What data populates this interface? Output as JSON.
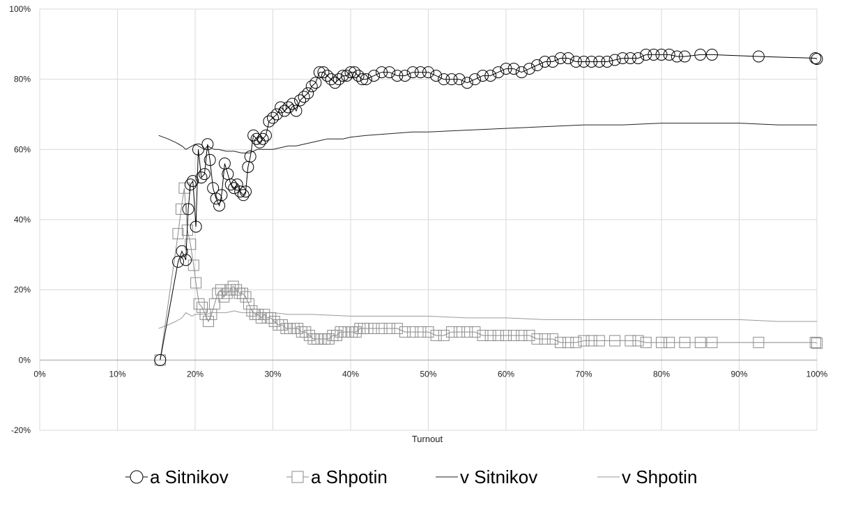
{
  "chart_data": {
    "type": "scatter",
    "title": "",
    "xlabel": "Turnout",
    "ylabel": "",
    "xlim": [
      0,
      100
    ],
    "ylim": [
      -20,
      100
    ],
    "x_ticks": [
      "0%",
      "10%",
      "20%",
      "30%",
      "40%",
      "50%",
      "60%",
      "70%",
      "80%",
      "90%",
      "100%"
    ],
    "y_ticks": [
      "-20%",
      "0%",
      "20%",
      "40%",
      "60%",
      "80%",
      "100%"
    ],
    "grid": true,
    "legend_position": "bottom",
    "series": [
      {
        "name": "a Sitnikov",
        "marker": "circle",
        "color": "#000000",
        "points": [
          [
            15.5,
            0
          ],
          [
            17.8,
            28
          ],
          [
            18.3,
            31
          ],
          [
            18.8,
            28.5
          ],
          [
            19.1,
            43
          ],
          [
            19.4,
            50
          ],
          [
            19.7,
            51
          ],
          [
            20.1,
            38
          ],
          [
            20.4,
            60
          ],
          [
            20.8,
            52
          ],
          [
            21.2,
            53
          ],
          [
            21.6,
            61.5
          ],
          [
            21.9,
            57
          ],
          [
            22.3,
            49
          ],
          [
            22.7,
            46
          ],
          [
            23.1,
            44
          ],
          [
            23.4,
            47
          ],
          [
            23.8,
            56
          ],
          [
            24.2,
            53
          ],
          [
            24.6,
            50
          ],
          [
            25.0,
            49
          ],
          [
            25.4,
            50
          ],
          [
            25.8,
            48
          ],
          [
            26.2,
            47
          ],
          [
            26.5,
            48
          ],
          [
            26.8,
            55
          ],
          [
            27.1,
            58
          ],
          [
            27.5,
            64
          ],
          [
            27.9,
            63
          ],
          [
            28.3,
            62
          ],
          [
            28.7,
            63
          ],
          [
            29.1,
            64
          ],
          [
            29.5,
            68
          ],
          [
            30.0,
            69
          ],
          [
            30.5,
            70
          ],
          [
            31.0,
            72
          ],
          [
            31.5,
            71
          ],
          [
            32.0,
            72
          ],
          [
            32.5,
            73
          ],
          [
            33.0,
            71
          ],
          [
            33.5,
            74
          ],
          [
            34.0,
            75
          ],
          [
            34.5,
            76
          ],
          [
            35.0,
            78
          ],
          [
            35.5,
            79
          ],
          [
            36.0,
            82
          ],
          [
            36.5,
            82
          ],
          [
            37.0,
            81
          ],
          [
            37.5,
            80
          ],
          [
            38.0,
            79
          ],
          [
            38.5,
            80
          ],
          [
            39.0,
            81
          ],
          [
            39.5,
            81
          ],
          [
            40.0,
            82
          ],
          [
            40.5,
            82
          ],
          [
            41.0,
            81
          ],
          [
            41.5,
            80
          ],
          [
            42.0,
            80
          ],
          [
            43,
            81
          ],
          [
            44,
            82
          ],
          [
            45,
            82
          ],
          [
            46,
            81
          ],
          [
            47,
            81
          ],
          [
            48,
            82
          ],
          [
            49,
            82
          ],
          [
            50,
            82
          ],
          [
            51,
            81
          ],
          [
            52,
            80
          ],
          [
            53,
            80
          ],
          [
            54,
            80
          ],
          [
            55,
            79
          ],
          [
            56,
            80
          ],
          [
            57,
            81
          ],
          [
            58,
            81
          ],
          [
            59,
            82
          ],
          [
            60,
            83
          ],
          [
            61,
            83
          ],
          [
            62,
            82
          ],
          [
            63,
            83
          ],
          [
            64,
            84
          ],
          [
            65,
            85
          ],
          [
            66,
            85
          ],
          [
            67,
            86
          ],
          [
            68,
            86
          ],
          [
            69,
            85
          ],
          [
            70,
            85
          ],
          [
            71,
            85
          ],
          [
            72,
            85
          ],
          [
            73,
            85
          ],
          [
            74,
            85.5
          ],
          [
            75,
            86
          ],
          [
            76,
            86
          ],
          [
            77,
            86
          ],
          [
            78,
            87
          ],
          [
            79,
            87
          ],
          [
            80,
            87
          ],
          [
            81,
            87
          ],
          [
            82,
            86.5
          ],
          [
            83,
            86.5
          ],
          [
            85,
            87
          ],
          [
            86.5,
            87
          ],
          [
            92.5,
            86.5
          ],
          [
            99.8,
            86
          ],
          [
            100,
            85.8
          ]
        ]
      },
      {
        "name": "a Shpotin",
        "marker": "square",
        "color": "#8a8a8a",
        "points": [
          [
            15.5,
            0
          ],
          [
            17.8,
            36
          ],
          [
            18.2,
            43
          ],
          [
            18.6,
            49
          ],
          [
            19.0,
            37
          ],
          [
            19.4,
            33
          ],
          [
            19.8,
            27
          ],
          [
            20.1,
            22
          ],
          [
            20.5,
            16
          ],
          [
            20.9,
            15
          ],
          [
            21.3,
            13
          ],
          [
            21.7,
            11
          ],
          [
            22.1,
            13
          ],
          [
            22.5,
            16
          ],
          [
            22.9,
            19
          ],
          [
            23.3,
            20
          ],
          [
            23.7,
            18
          ],
          [
            24.1,
            19
          ],
          [
            24.5,
            20
          ],
          [
            24.9,
            21
          ],
          [
            25.3,
            20
          ],
          [
            25.7,
            19
          ],
          [
            26.1,
            19
          ],
          [
            26.5,
            18
          ],
          [
            26.9,
            16
          ],
          [
            27.3,
            14
          ],
          [
            27.7,
            13
          ],
          [
            28.1,
            13
          ],
          [
            28.5,
            12
          ],
          [
            28.9,
            13
          ],
          [
            29.3,
            12
          ],
          [
            29.7,
            12
          ],
          [
            30.2,
            11
          ],
          [
            30.7,
            10
          ],
          [
            31.2,
            10
          ],
          [
            31.7,
            9
          ],
          [
            32.2,
            9
          ],
          [
            32.7,
            9
          ],
          [
            33.2,
            9
          ],
          [
            33.7,
            8
          ],
          [
            34.2,
            8
          ],
          [
            34.7,
            7
          ],
          [
            35.2,
            6
          ],
          [
            35.7,
            6
          ],
          [
            36.2,
            6
          ],
          [
            36.7,
            6
          ],
          [
            37.2,
            6
          ],
          [
            37.7,
            7
          ],
          [
            38.2,
            7
          ],
          [
            38.7,
            8
          ],
          [
            39.2,
            8
          ],
          [
            39.7,
            8
          ],
          [
            40.2,
            8
          ],
          [
            40.7,
            8
          ],
          [
            41.2,
            9
          ],
          [
            41.7,
            9
          ],
          [
            42.2,
            9
          ],
          [
            43,
            9
          ],
          [
            44,
            9
          ],
          [
            45,
            9
          ],
          [
            46,
            9
          ],
          [
            47,
            8
          ],
          [
            48,
            8
          ],
          [
            49,
            8
          ],
          [
            50,
            8
          ],
          [
            51,
            7
          ],
          [
            52,
            7
          ],
          [
            53,
            8
          ],
          [
            54,
            8
          ],
          [
            55,
            8
          ],
          [
            56,
            8
          ],
          [
            57,
            7
          ],
          [
            58,
            7
          ],
          [
            59,
            7
          ],
          [
            60,
            7
          ],
          [
            61,
            7
          ],
          [
            62,
            7
          ],
          [
            63,
            7
          ],
          [
            64,
            6
          ],
          [
            65,
            6
          ],
          [
            66,
            6
          ],
          [
            67,
            5
          ],
          [
            68,
            5
          ],
          [
            69,
            5
          ],
          [
            70,
            5.5
          ],
          [
            71,
            5.5
          ],
          [
            72,
            5.5
          ],
          [
            74,
            5.5
          ],
          [
            76,
            5.5
          ],
          [
            77,
            5.5
          ],
          [
            78,
            5
          ],
          [
            80,
            5
          ],
          [
            81,
            5
          ],
          [
            83,
            5
          ],
          [
            85,
            5
          ],
          [
            86.5,
            5
          ],
          [
            92.5,
            5
          ],
          [
            99.8,
            5
          ],
          [
            100,
            4.8
          ]
        ]
      },
      {
        "name": "v Sitnikov",
        "marker": "line",
        "color": "#222222",
        "points": [
          [
            15.3,
            64
          ],
          [
            16.5,
            63
          ],
          [
            17.5,
            62
          ],
          [
            18.3,
            61
          ],
          [
            18.8,
            60
          ],
          [
            19.2,
            60.5
          ],
          [
            19.6,
            61
          ],
          [
            20.0,
            61.5
          ],
          [
            20.4,
            61
          ],
          [
            20.8,
            60.5
          ],
          [
            21.2,
            60
          ],
          [
            21.6,
            61
          ],
          [
            22.0,
            60.5
          ],
          [
            22.5,
            60
          ],
          [
            23,
            60
          ],
          [
            24,
            59.5
          ],
          [
            25,
            59.5
          ],
          [
            26,
            59
          ],
          [
            27,
            59
          ],
          [
            28,
            60
          ],
          [
            29,
            60
          ],
          [
            30,
            60
          ],
          [
            31,
            60.5
          ],
          [
            32,
            61
          ],
          [
            33,
            61
          ],
          [
            34,
            61.5
          ],
          [
            35,
            62
          ],
          [
            36,
            62.5
          ],
          [
            37,
            63
          ],
          [
            38,
            63
          ],
          [
            39,
            63
          ],
          [
            40,
            63.5
          ],
          [
            42,
            64
          ],
          [
            45,
            64.5
          ],
          [
            48,
            65
          ],
          [
            50,
            65
          ],
          [
            55,
            65.5
          ],
          [
            60,
            66
          ],
          [
            65,
            66.5
          ],
          [
            70,
            67
          ],
          [
            75,
            67
          ],
          [
            80,
            67.5
          ],
          [
            85,
            67.5
          ],
          [
            90,
            67.5
          ],
          [
            95,
            67
          ],
          [
            100,
            67
          ]
        ]
      },
      {
        "name": "v Shpotin",
        "marker": "line",
        "color": "#9a9a9a",
        "points": [
          [
            15.3,
            9
          ],
          [
            16.5,
            10
          ],
          [
            17.5,
            11
          ],
          [
            18.3,
            12
          ],
          [
            18.8,
            13.5
          ],
          [
            19.2,
            13
          ],
          [
            19.6,
            12.5
          ],
          [
            20,
            13
          ],
          [
            20.5,
            13
          ],
          [
            21,
            13
          ],
          [
            21.5,
            13
          ],
          [
            22,
            13.5
          ],
          [
            23,
            13.5
          ],
          [
            24,
            13.5
          ],
          [
            25,
            14
          ],
          [
            26,
            13.5
          ],
          [
            27,
            13.5
          ],
          [
            28,
            13.5
          ],
          [
            30,
            13.5
          ],
          [
            32,
            13
          ],
          [
            35,
            13
          ],
          [
            40,
            12.5
          ],
          [
            45,
            12.5
          ],
          [
            50,
            12.5
          ],
          [
            55,
            12
          ],
          [
            60,
            12
          ],
          [
            65,
            11.5
          ],
          [
            70,
            11.5
          ],
          [
            75,
            11.5
          ],
          [
            80,
            11.5
          ],
          [
            85,
            11.5
          ],
          [
            90,
            11.5
          ],
          [
            95,
            11
          ],
          [
            100,
            11
          ]
        ]
      }
    ]
  }
}
